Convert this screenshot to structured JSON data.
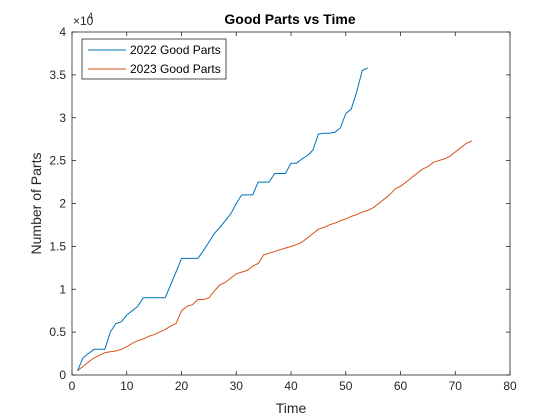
{
  "chart_data": {
    "type": "line",
    "title": "Good Parts vs Time",
    "xlabel": "Time",
    "ylabel": "Number of Parts",
    "y_exponent_label": "×10",
    "y_exponent": "4",
    "xlim": [
      0,
      80
    ],
    "ylim": [
      0,
      4
    ],
    "x_ticks": [
      "0",
      "10",
      "20",
      "30",
      "40",
      "50",
      "60",
      "70",
      "80"
    ],
    "y_ticks": [
      "0",
      "0.5",
      "1",
      "1.5",
      "2",
      "2.5",
      "3",
      "3.5",
      "4"
    ],
    "grid": false,
    "legend_position": "top-left",
    "series": [
      {
        "name": "2022 Good Parts",
        "color": "#0072BD",
        "x": [
          1,
          2,
          3,
          4,
          5,
          6,
          7,
          8,
          9,
          10,
          11,
          12,
          13,
          14,
          15,
          16,
          17,
          18,
          19,
          20,
          21,
          22,
          23,
          24,
          25,
          26,
          27,
          28,
          29,
          30,
          31,
          32,
          33,
          34,
          35,
          36,
          37,
          38,
          39,
          40,
          41,
          42,
          43,
          44,
          45,
          46,
          47,
          48,
          49,
          50,
          51,
          52,
          53,
          54
        ],
        "y": [
          0.05,
          0.2,
          0.25,
          0.3,
          0.3,
          0.3,
          0.5,
          0.6,
          0.62,
          0.7,
          0.75,
          0.8,
          0.9,
          0.9,
          0.9,
          0.9,
          0.9,
          1.05,
          1.2,
          1.36,
          1.36,
          1.36,
          1.36,
          1.45,
          1.55,
          1.65,
          1.72,
          1.8,
          1.88,
          2.0,
          2.1,
          2.1,
          2.1,
          2.25,
          2.25,
          2.25,
          2.35,
          2.35,
          2.35,
          2.47,
          2.47,
          2.52,
          2.56,
          2.62,
          2.81,
          2.82,
          2.82,
          2.83,
          2.88,
          3.05,
          3.1,
          3.3,
          3.55,
          3.58
        ]
      },
      {
        "name": "2023 Good Parts",
        "color": "#D95319",
        "x": [
          1,
          2,
          3,
          4,
          5,
          6,
          7,
          8,
          9,
          10,
          11,
          12,
          13,
          14,
          15,
          16,
          17,
          18,
          19,
          20,
          21,
          22,
          23,
          24,
          25,
          26,
          27,
          28,
          29,
          30,
          31,
          32,
          33,
          34,
          35,
          36,
          37,
          38,
          39,
          40,
          41,
          42,
          43,
          44,
          45,
          46,
          47,
          48,
          49,
          50,
          51,
          52,
          53,
          54,
          55,
          56,
          57,
          58,
          59,
          60,
          61,
          62,
          63,
          64,
          65,
          66,
          67,
          68,
          69,
          70,
          71,
          72,
          73
        ],
        "y": [
          0.05,
          0.1,
          0.15,
          0.2,
          0.23,
          0.26,
          0.27,
          0.28,
          0.3,
          0.33,
          0.37,
          0.4,
          0.42,
          0.45,
          0.47,
          0.5,
          0.53,
          0.57,
          0.6,
          0.75,
          0.8,
          0.82,
          0.88,
          0.88,
          0.9,
          0.98,
          1.05,
          1.08,
          1.13,
          1.18,
          1.2,
          1.22,
          1.27,
          1.3,
          1.4,
          1.42,
          1.44,
          1.46,
          1.48,
          1.5,
          1.52,
          1.55,
          1.6,
          1.65,
          1.7,
          1.72,
          1.75,
          1.77,
          1.8,
          1.82,
          1.85,
          1.87,
          1.9,
          1.92,
          1.95,
          2.0,
          2.05,
          2.1,
          2.17,
          2.2,
          2.25,
          2.3,
          2.35,
          2.4,
          2.43,
          2.48,
          2.5,
          2.52,
          2.55,
          2.6,
          2.65,
          2.7,
          2.73
        ]
      }
    ]
  }
}
